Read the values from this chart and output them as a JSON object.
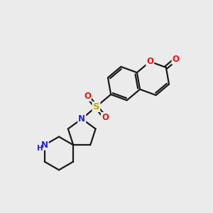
{
  "background_color": "#ebebeb",
  "bond_color": "#1a1a1a",
  "bond_width": 1.6,
  "O_color": "#ee1111",
  "N_color": "#2222dd",
  "S_color": "#bbaa00",
  "figsize": [
    3.0,
    3.0
  ],
  "dpi": 100,
  "xlim": [
    0,
    10
  ],
  "ylim": [
    0,
    10
  ]
}
